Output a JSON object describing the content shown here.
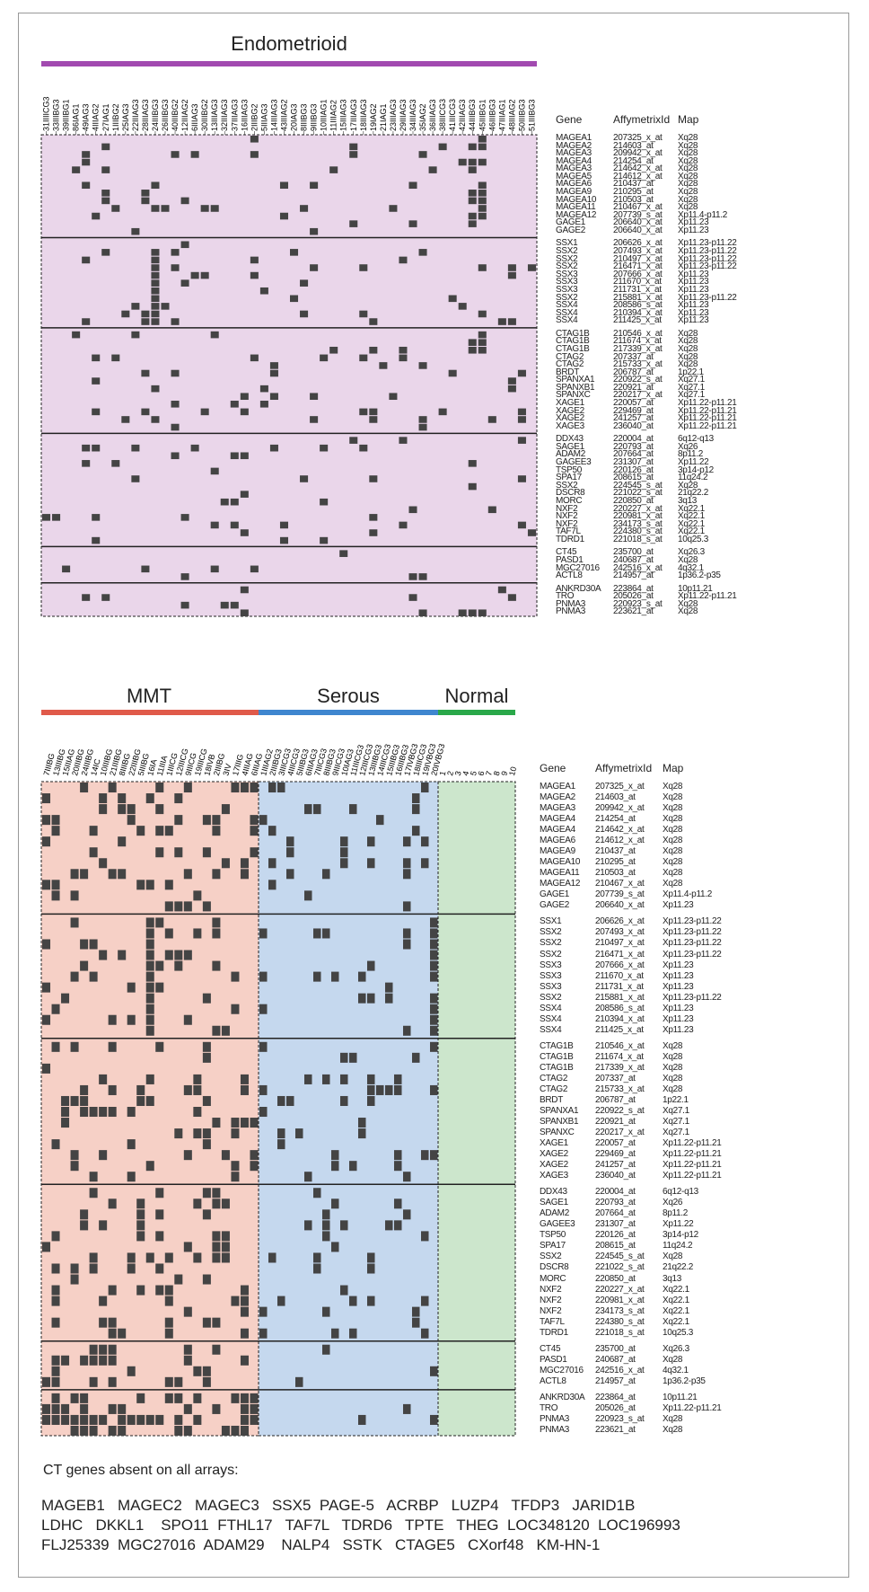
{
  "panels": {
    "top": {
      "groups": [
        {
          "name": "Endometrioid",
          "color": "#a24ab0"
        }
      ],
      "sample_labels": [
        "31IIIICG3",
        "33IIIBG3",
        "39IIIBG1",
        "86IAG1",
        "49IAG3",
        "4IIIAG2",
        "27IAG1",
        "1IIIBG2",
        "25IAG3",
        "22IIIAG3",
        "28IIIAG3",
        "24IIIBG3",
        "26IIIBG3",
        "40IIIBG2",
        "12IIIAG2",
        "6IIIAG3",
        "30IIIBG2",
        "13IIIAG3",
        "32IIIAG3",
        "37IIIAG3",
        "16IIIAG3",
        "2IIIBG2",
        "5IIIAG3",
        "14IIIAG3",
        "43IIIAG2",
        "20IAG3",
        "8IIIBG3",
        "9IIIBG3",
        "10IIIAG1",
        "11IIIAG2",
        "15IIIAG3",
        "17IIIAG3",
        "18IIIAG3",
        "19IAG2",
        "21IAG1",
        "23IIIAG3",
        "29IIIAG3",
        "34IIIAG3",
        "35IAG2",
        "36IIIAG3",
        "38IIICG3",
        "41IIICG3",
        "42IIIAG3",
        "44IIIBG3",
        "45IIIBG1",
        "46IIIBG3",
        "47IIIAG1",
        "48IIIAG2",
        "50IIIBG3",
        "51IIIBG3"
      ],
      "header": {
        "gene": "Gene",
        "affy": "AffymetrixId",
        "map": "Map"
      },
      "blocks": [
        {
          "genes": [
            "MAGEA1",
            "MAGEA2",
            "MAGEA3",
            "MAGEA4",
            "MAGEA3",
            "MAGEA5",
            "MAGEA6",
            "MAGEA9",
            "MAGEA10",
            "MAGEA11",
            "MAGEA12",
            "GAGE1",
            "GAGE2"
          ],
          "ids": [
            "207325_x_at",
            "214603_at",
            "209942_x_at",
            "214254_at",
            "214642_x_at",
            "214612_x_at",
            "210437_at",
            "210295_at",
            "210503_at",
            "210467_x_at",
            "207739_s_at",
            "206640_x_at",
            "206640_x_at"
          ],
          "maps": [
            "Xq28",
            "Xq28",
            "Xq28",
            "Xq28",
            "Xq28",
            "Xq28",
            "Xq28",
            "Xq28",
            "Xq28",
            "Xq28",
            "Xp11.4-p11.2",
            "Xp11.23",
            "Xp11.23"
          ]
        },
        {
          "genes": [
            "SSX1",
            "SSX2",
            "SSX2",
            "SSX2",
            "SSX3",
            "SSX3",
            "SSX3",
            "SSX2",
            "SSX4",
            "SSX4",
            "SSX4"
          ],
          "ids": [
            "206626_x_at",
            "207493_x_at",
            "210497_x_at",
            "216471_x_at",
            "207666_x_at",
            "211670_x_at",
            "211731_x_at",
            "215881_x_at",
            "208586_s_at",
            "210394_x_at",
            "211425_x_at"
          ],
          "maps": [
            "Xp11.23-p11.22",
            "Xp11.23-p11.22",
            "Xp11.23-p11.22",
            "Xp11.23-p11.22",
            "Xp11.23",
            "Xp11.23",
            "Xp11.23",
            "Xp11.23-p11.22",
            "Xp11.23",
            "Xp11.23",
            "Xp11.23"
          ]
        },
        {
          "genes": [
            "CTAG1B",
            "CTAG1B",
            "CTAG1B",
            "CTAG2",
            "CTAG2",
            "BRDT",
            "SPANXA1",
            "SPANXB1",
            "SPANXC",
            "XAGE1",
            "XAGE2",
            "XAGE2",
            "XAGE3"
          ],
          "ids": [
            "210546_x_at",
            "211674_x_at",
            "217339_x_at",
            "207337_at",
            "215733_x_at",
            "206787_at",
            "220922_s_at",
            "220921_at",
            "220217_x_at",
            "220057_at",
            "229469_at",
            "241257_at",
            "236040_at"
          ],
          "maps": [
            "Xq28",
            "Xq28",
            "Xq28",
            "Xq28",
            "Xq28",
            "1p22.1",
            "Xq27.1",
            "Xq27.1",
            "Xq27.1",
            "Xp11.22-p11.21",
            "Xp11.22-p11.21",
            "Xp11.22-p11.21",
            "Xp11.22-p11.21"
          ]
        },
        {
          "genes": [
            "DDX43",
            "SAGE1",
            "ADAM2",
            "GAGEE3",
            "TSP50",
            "SPA17",
            "SSX2",
            "DSCR8",
            "MORC",
            "NXF2",
            "NXF2",
            "NXF2",
            "TAF7L",
            "TDRD1"
          ],
          "ids": [
            "220004_at",
            "220793_at",
            "207664_at",
            "231307_at",
            "220126_at",
            "208615_at",
            "224545_s_at",
            "221022_s_at",
            "220850_at",
            "220227_x_at",
            "220981_x_at",
            "234173_s_at",
            "224380_s_at",
            "221018_s_at"
          ],
          "maps": [
            "6q12-q13",
            "Xq26",
            "8p11.2",
            "Xp11.22",
            "3p14-p12",
            "11q24.2",
            "Xq28",
            "21q22.2",
            "3q13",
            "Xq22.1",
            "Xq22.1",
            "Xq22.1",
            "Xq22.1",
            "10q25.3"
          ]
        },
        {
          "genes": [
            "CT45",
            "PASD1",
            "MGC27016",
            "ACTL8"
          ],
          "ids": [
            "235700_at",
            "240687_at",
            "242516_x_at",
            "214957_at"
          ],
          "maps": [
            "Xq26.3",
            "Xq28",
            "4q32.1",
            "1p36.2-p35"
          ]
        },
        {
          "genes": [
            "ANKRD30A",
            "TRO",
            "PNMA3",
            "PNMA3"
          ],
          "ids": [
            "223864_at",
            "205026_at",
            "220923_s_at",
            "223621_at"
          ],
          "maps": [
            "10p11.21",
            "Xp11.22-p11.21",
            "Xq28",
            "Xq28"
          ]
        }
      ]
    },
    "bottom": {
      "groups": [
        {
          "name": "MMT",
          "color": "#e05a4a"
        },
        {
          "name": "Serous",
          "color": "#3f86cf"
        },
        {
          "name": "Normal",
          "color": "#2aa84a"
        }
      ],
      "mmt_labels": [
        "7IIIBG",
        "13IIIBG",
        "15IIIAG",
        "20IIIBG",
        "24IIIBG",
        "14IC",
        "10IIIBG",
        "21IIIBG",
        "8IIIBG",
        "22IIIBG",
        "5IIIBG",
        "16IA",
        "11IIIA",
        "1IIICG",
        "12IIICG",
        "9IIICG",
        "19IIICG",
        "18IVB",
        "2IIIBG",
        "3IV",
        "17IIIG",
        "4IIIAG",
        "6IIIAG"
      ],
      "serous_labels": [
        "1IIIAG2",
        "2IIIBG3",
        "3IIICG3",
        "4IIICG3",
        "5IIIBG3",
        "6IIIAG3",
        "7IIICG3",
        "8IIIBG3",
        "9IIICG3",
        "10IAG3",
        "11IIICG3",
        "12IIICG3",
        "13IIIBG3",
        "14IIICG3",
        "15IIIBG3",
        "16IIIBG3",
        "17IVBG3",
        "18IIICG3",
        "19IVBG3",
        "20IVBG3"
      ],
      "normal_labels": [
        "1",
        "2",
        "3",
        "4",
        "5",
        "6",
        "7",
        "8",
        "9",
        "10"
      ],
      "header": {
        "gene": "Gene",
        "affy": "AffymetrixId",
        "map": "Map"
      },
      "blocks": [
        {
          "genes": [
            "MAGEA1",
            "MAGEA2",
            "MAGEA3",
            "MAGEA4",
            "MAGEA4",
            "MAGEA6",
            "MAGEA9",
            "MAGEA10",
            "MAGEA11",
            "MAGEA12",
            "GAGE1",
            "GAGE2"
          ],
          "ids": [
            "207325_x_at",
            "214603_at",
            "209942_x_at",
            "214254_at",
            "214642_x_at",
            "214612_x_at",
            "210437_at",
            "210295_at",
            "210503_at",
            "210467_x_at",
            "207739_s_at",
            "206640_x_at"
          ],
          "maps": [
            "Xq28",
            "Xq28",
            "Xq28",
            "Xq28",
            "Xq28",
            "Xq28",
            "Xq28",
            "Xq28",
            "Xq28",
            "Xq28",
            "Xp11.4-p11.2",
            "Xp11.23"
          ]
        },
        {
          "genes": [
            "SSX1",
            "SSX2",
            "SSX2",
            "SSX2",
            "SSX3",
            "SSX3",
            "SSX3",
            "SSX2",
            "SSX4",
            "SSX4",
            "SSX4"
          ],
          "ids": [
            "206626_x_at",
            "207493_x_at",
            "210497_x_at",
            "216471_x_at",
            "207666_x_at",
            "211670_x_at",
            "211731_x_at",
            "215881_x_at",
            "208586_s_at",
            "210394_x_at",
            "211425_x_at"
          ],
          "maps": [
            "Xp11.23-p11.22",
            "Xp11.23-p11.22",
            "Xp11.23-p11.22",
            "Xp11.23-p11.22",
            "Xp11.23",
            "Xp11.23",
            "Xp11.23",
            "Xp11.23-p11.22",
            "Xp11.23",
            "Xp11.23",
            "Xp11.23"
          ]
        },
        {
          "genes": [
            "CTAG1B",
            "CTAG1B",
            "CTAG1B",
            "CTAG2",
            "CTAG2",
            "BRDT",
            "SPANXA1",
            "SPANXB1",
            "SPANXC",
            "XAGE1",
            "XAGE2",
            "XAGE2",
            "XAGE3"
          ],
          "ids": [
            "210546_x_at",
            "211674_x_at",
            "217339_x_at",
            "207337_at",
            "215733_x_at",
            "206787_at",
            "220922_s_at",
            "220921_at",
            "220217_x_at",
            "220057_at",
            "229469_at",
            "241257_at",
            "236040_at"
          ],
          "maps": [
            "Xq28",
            "Xq28",
            "Xq28",
            "Xq28",
            "Xq28",
            "1p22.1",
            "Xq27.1",
            "Xq27.1",
            "Xq27.1",
            "Xp11.22-p11.21",
            "Xp11.22-p11.21",
            "Xp11.22-p11.21",
            "Xp11.22-p11.21"
          ]
        },
        {
          "genes": [
            "DDX43",
            "SAGE1",
            "ADAM2",
            "GAGEE3",
            "TSP50",
            "SPA17",
            "SSX2",
            "DSCR8",
            "MORC",
            "NXF2",
            "NXF2",
            "NXF2",
            "TAF7L",
            "TDRD1"
          ],
          "ids": [
            "220004_at",
            "220793_at",
            "207664_at",
            "231307_at",
            "220126_at",
            "208615_at",
            "224545_s_at",
            "221022_s_at",
            "220850_at",
            "220227_x_at",
            "220981_x_at",
            "234173_s_at",
            "224380_s_at",
            "221018_s_at"
          ],
          "maps": [
            "6q12-q13",
            "Xq26",
            "8p11.2",
            "Xp11.22",
            "3p14-p12",
            "11q24.2",
            "Xq28",
            "21q22.2",
            "3q13",
            "Xq22.1",
            "Xq22.1",
            "Xq22.1",
            "Xq22.1",
            "10q25.3"
          ]
        },
        {
          "genes": [
            "CT45",
            "PASD1",
            "MGC27016",
            "ACTL8"
          ],
          "ids": [
            "235700_at",
            "240687_at",
            "242516_x_at",
            "214957_at"
          ],
          "maps": [
            "Xq26.3",
            "Xq28",
            "4q32.1",
            "1p36.2-p35"
          ]
        },
        {
          "genes": [
            "ANKRD30A",
            "TRO",
            "PNMA3",
            "PNMA3"
          ],
          "ids": [
            "223864_at",
            "205026_at",
            "220923_s_at",
            "223621_at"
          ],
          "maps": [
            "10p11.21",
            "Xp11.22-p11.21",
            "Xq28",
            "Xq28"
          ]
        }
      ]
    }
  },
  "footer": {
    "title": "CT genes absent on all arrays:",
    "line1": "MAGEB1   MAGEC2   MAGEC3   SSX5  PAGE-5   ACRBP   LUZP4   TFDP3   JARID1B",
    "line2": "LDHC   DKKL1    SPO11  FTHL17   TAF7L   TDRD6   TPTE   THEG  LOC348120  LOC196993",
    "line3": "FLJ25339  MGC27016  ADAM29    NALP4   SSTK   CTAGE5   CXorf48   KM-HN-1"
  },
  "colors": {
    "endometrioid_bg": "#ead6ea",
    "mmt_bg": "#f6d0c6",
    "serous_bg": "#c5d8ee",
    "normal_bg": "#cce6cc",
    "cell": "#444444"
  }
}
